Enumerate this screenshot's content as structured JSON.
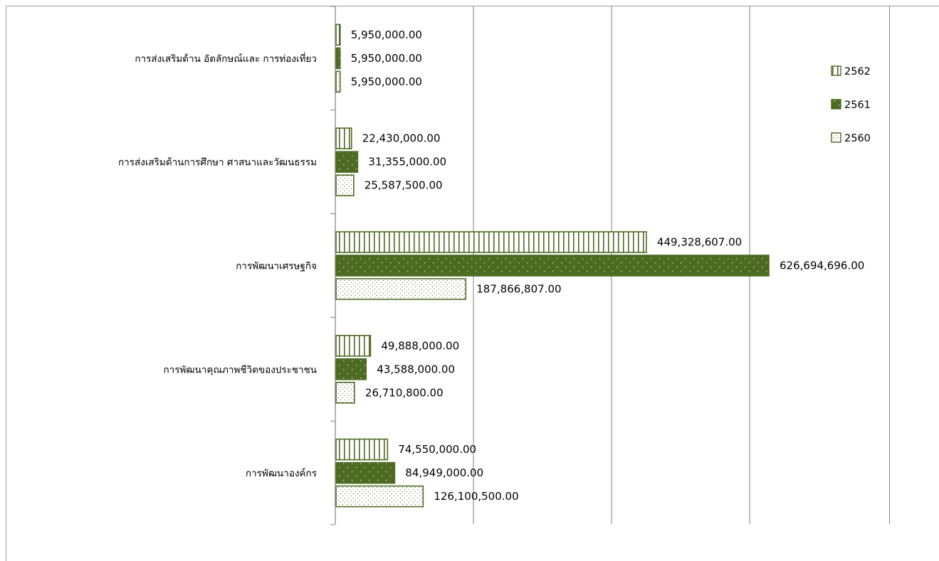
{
  "chart_data": {
    "type": "bar",
    "orientation": "horizontal",
    "categories": [
      "การส่งเสริมด้าน    อัตลักษณ์และ    การท่องเที่ยว",
      "การส่งเสริมด้านการศึกษา ศาสนาและวัฒนธรรม",
      "การพัฒนาเศรษฐกิจ",
      "การพัฒนาคุณภาพชีวิตของประชาชน",
      "การพัฒนาองค์กร"
    ],
    "series": [
      {
        "name": "2562",
        "values": [
          5950000,
          22430000,
          449328607,
          49888000,
          74550000
        ],
        "labels": [
          "5,950,000.00",
          "22,430,000.00",
          "449,328,607.00",
          "49,888,000.00",
          "74,550,000.00"
        ]
      },
      {
        "name": "2561",
        "values": [
          5950000,
          31355000,
          626694696,
          43588000,
          84949000
        ],
        "labels": [
          "5,950,000.00",
          "31,355,000.00",
          "626,694,696.00",
          "43,588,000.00",
          "84,949,000.00"
        ]
      },
      {
        "name": "2560",
        "values": [
          5950000,
          25587500,
          187866807,
          26710800,
          126100500
        ],
        "labels": [
          "5,950,000.00",
          "25,587,500.00",
          "187,866,807.00",
          "26,710,800.00",
          "126,100,500.00"
        ]
      }
    ],
    "xlim": [
      0,
      800000000
    ],
    "x_gridlines": [
      200000000,
      400000000,
      600000000
    ],
    "legend_position": "right",
    "grid": true,
    "colors": {
      "2562": "#4e6b23",
      "2561": "#4e6b23",
      "2560": "#4e6b23",
      "fill_dark": "#4e6b23",
      "axis": "#808080",
      "grid": "#808080"
    }
  }
}
